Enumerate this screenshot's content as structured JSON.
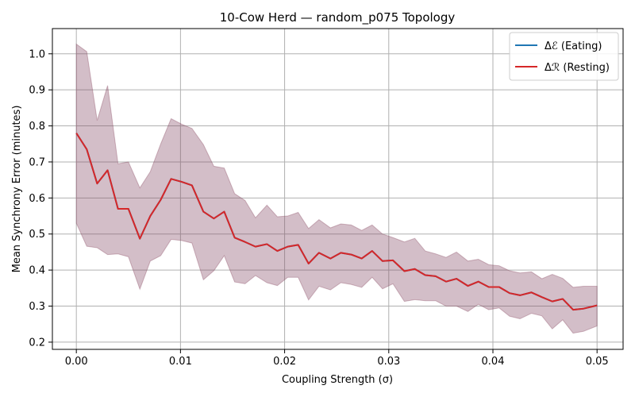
{
  "chart_data": {
    "type": "line",
    "title": "10-Cow Herd — random_p075 Topology",
    "xlabel": "Coupling Strength (σ)",
    "ylabel": "Mean Synchrony Error (minutes)",
    "xlim": [
      -0.0023,
      0.0525
    ],
    "ylim": [
      0.18,
      1.07
    ],
    "xticks": [
      0.0,
      0.01,
      0.02,
      0.03,
      0.04,
      0.05
    ],
    "xtick_labels": [
      "0.00",
      "0.01",
      "0.02",
      "0.03",
      "0.04",
      "0.05"
    ],
    "yticks": [
      0.2,
      0.3,
      0.4,
      0.5,
      0.6,
      0.7,
      0.8,
      0.9,
      1.0
    ],
    "ytick_labels": [
      "0.2",
      "0.3",
      "0.4",
      "0.5",
      "0.6",
      "0.7",
      "0.8",
      "0.9",
      "1.0"
    ],
    "grid": true,
    "legend_position": "top-right",
    "x": [
      0.0,
      0.001,
      0.002,
      0.003,
      0.004,
      0.005,
      0.0061,
      0.0071,
      0.0081,
      0.0091,
      0.0101,
      0.0111,
      0.0122,
      0.0132,
      0.0142,
      0.0152,
      0.0162,
      0.0172,
      0.0183,
      0.0193,
      0.0203,
      0.0213,
      0.0223,
      0.0233,
      0.0244,
      0.0254,
      0.0264,
      0.0274,
      0.0284,
      0.0294,
      0.0304,
      0.0315,
      0.0325,
      0.0335,
      0.0345,
      0.0355,
      0.0365,
      0.0376,
      0.0386,
      0.0396,
      0.0406,
      0.0416,
      0.0426,
      0.0437,
      0.0447,
      0.0457,
      0.0467,
      0.0477,
      0.0487,
      0.05
    ],
    "series": [
      {
        "name": "Δℰ (Eating)",
        "color": "#1f77b4",
        "values": [
          0.78,
          0.735,
          0.64,
          0.677,
          0.57,
          0.57,
          0.487,
          0.55,
          0.595,
          0.653,
          0.645,
          0.635,
          0.562,
          0.543,
          0.562,
          0.49,
          0.478,
          0.465,
          0.472,
          0.453,
          0.465,
          0.47,
          0.418,
          0.448,
          0.432,
          0.448,
          0.443,
          0.432,
          0.453,
          0.425,
          0.427,
          0.397,
          0.403,
          0.386,
          0.383,
          0.368,
          0.376,
          0.356,
          0.368,
          0.353,
          0.353,
          0.336,
          0.33,
          0.338,
          0.325,
          0.313,
          0.32,
          0.29,
          0.293,
          0.302
        ],
        "upper": [
          1.027,
          1.006,
          0.815,
          0.912,
          0.695,
          0.7,
          0.628,
          0.673,
          0.75,
          0.82,
          0.805,
          0.793,
          0.748,
          0.688,
          0.683,
          0.612,
          0.593,
          0.545,
          0.58,
          0.548,
          0.55,
          0.56,
          0.515,
          0.54,
          0.517,
          0.528,
          0.525,
          0.51,
          0.525,
          0.5,
          0.49,
          0.478,
          0.488,
          0.453,
          0.445,
          0.435,
          0.45,
          0.425,
          0.43,
          0.415,
          0.412,
          0.398,
          0.392,
          0.395,
          0.376,
          0.388,
          0.377,
          0.352,
          0.355,
          0.355
        ],
        "lower": [
          0.53,
          0.466,
          0.462,
          0.443,
          0.445,
          0.437,
          0.347,
          0.425,
          0.44,
          0.485,
          0.482,
          0.475,
          0.373,
          0.398,
          0.44,
          0.367,
          0.362,
          0.385,
          0.365,
          0.357,
          0.38,
          0.38,
          0.317,
          0.355,
          0.345,
          0.365,
          0.36,
          0.352,
          0.38,
          0.348,
          0.362,
          0.313,
          0.318,
          0.315,
          0.315,
          0.3,
          0.3,
          0.285,
          0.305,
          0.29,
          0.295,
          0.272,
          0.265,
          0.28,
          0.273,
          0.237,
          0.262,
          0.225,
          0.23,
          0.245
        ]
      },
      {
        "name": "Δℛ (Resting)",
        "color": "#d62728",
        "values": [
          0.78,
          0.735,
          0.64,
          0.677,
          0.57,
          0.57,
          0.487,
          0.55,
          0.595,
          0.653,
          0.645,
          0.635,
          0.562,
          0.543,
          0.562,
          0.49,
          0.478,
          0.465,
          0.472,
          0.453,
          0.465,
          0.47,
          0.418,
          0.448,
          0.432,
          0.448,
          0.443,
          0.432,
          0.453,
          0.425,
          0.427,
          0.397,
          0.403,
          0.386,
          0.383,
          0.368,
          0.376,
          0.356,
          0.368,
          0.353,
          0.353,
          0.336,
          0.33,
          0.338,
          0.325,
          0.313,
          0.32,
          0.29,
          0.293,
          0.302
        ],
        "upper": [
          1.027,
          1.006,
          0.815,
          0.912,
          0.695,
          0.7,
          0.628,
          0.673,
          0.75,
          0.82,
          0.805,
          0.793,
          0.748,
          0.688,
          0.683,
          0.612,
          0.593,
          0.545,
          0.58,
          0.548,
          0.55,
          0.56,
          0.515,
          0.54,
          0.517,
          0.528,
          0.525,
          0.51,
          0.525,
          0.5,
          0.49,
          0.478,
          0.488,
          0.453,
          0.445,
          0.435,
          0.45,
          0.425,
          0.43,
          0.415,
          0.412,
          0.398,
          0.392,
          0.395,
          0.376,
          0.388,
          0.377,
          0.352,
          0.355,
          0.355
        ],
        "lower": [
          0.53,
          0.466,
          0.462,
          0.443,
          0.445,
          0.437,
          0.347,
          0.425,
          0.44,
          0.485,
          0.482,
          0.475,
          0.373,
          0.398,
          0.44,
          0.367,
          0.362,
          0.385,
          0.365,
          0.357,
          0.38,
          0.38,
          0.317,
          0.355,
          0.345,
          0.365,
          0.36,
          0.352,
          0.38,
          0.348,
          0.362,
          0.313,
          0.318,
          0.315,
          0.315,
          0.3,
          0.3,
          0.285,
          0.305,
          0.29,
          0.295,
          0.272,
          0.265,
          0.28,
          0.273,
          0.237,
          0.262,
          0.225,
          0.23,
          0.245
        ]
      }
    ],
    "band_colors": [
      "#1f77b4",
      "#d62728"
    ]
  }
}
